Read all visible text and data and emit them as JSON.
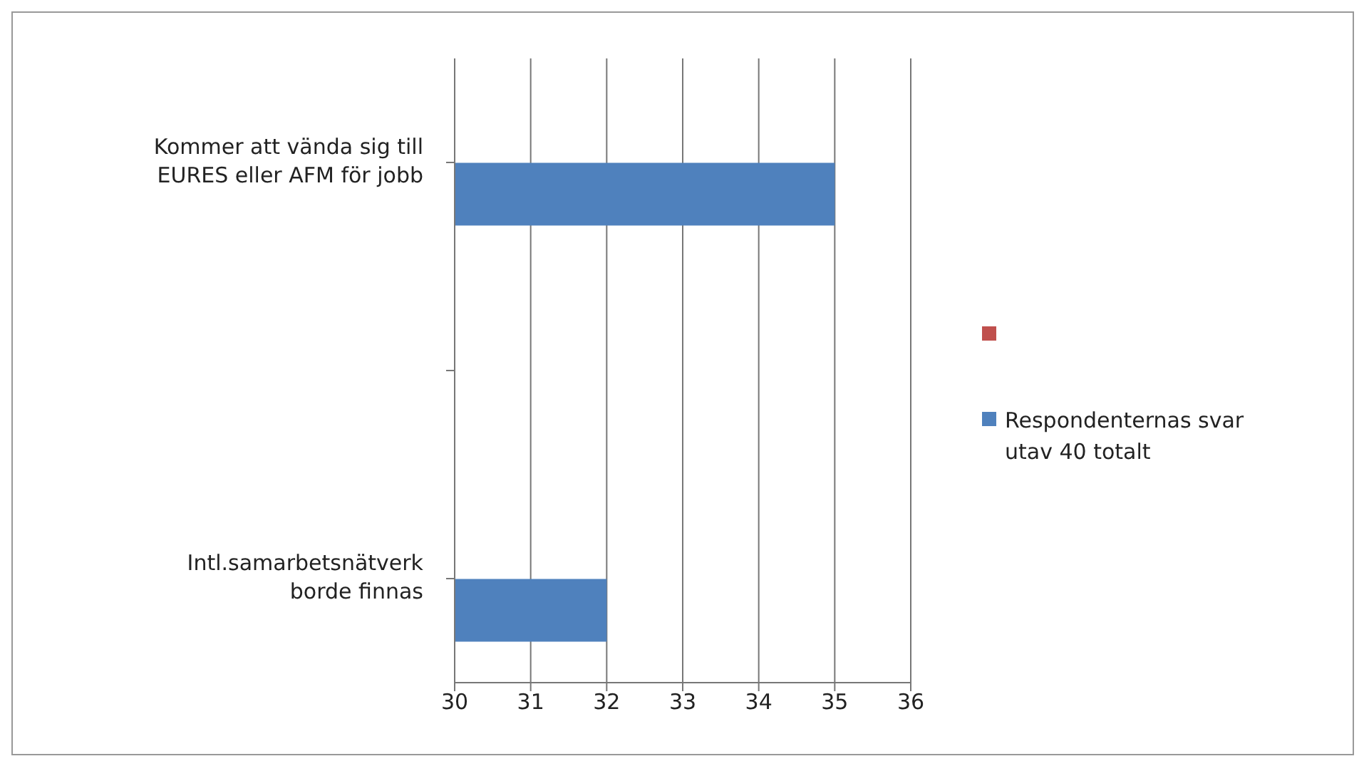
{
  "chart_data": {
    "type": "bar",
    "orientation": "horizontal",
    "categories": [
      "Kommer att vända sig till EURES eller AFM för jobb",
      null,
      "Intl.samarbetsnätverk borde finnas"
    ],
    "series": [
      {
        "color": "#c0504d",
        "values": [
          null,
          null,
          null
        ]
      },
      {
        "name": "Respondenternas svar utav 40 totalt",
        "color": "#4f81bd",
        "values": [
          35,
          null,
          32
        ]
      }
    ],
    "xlim": [
      30,
      36
    ],
    "xticks": [
      30,
      31,
      32,
      33,
      34,
      35,
      36
    ],
    "grid": "x",
    "legend": "right"
  }
}
